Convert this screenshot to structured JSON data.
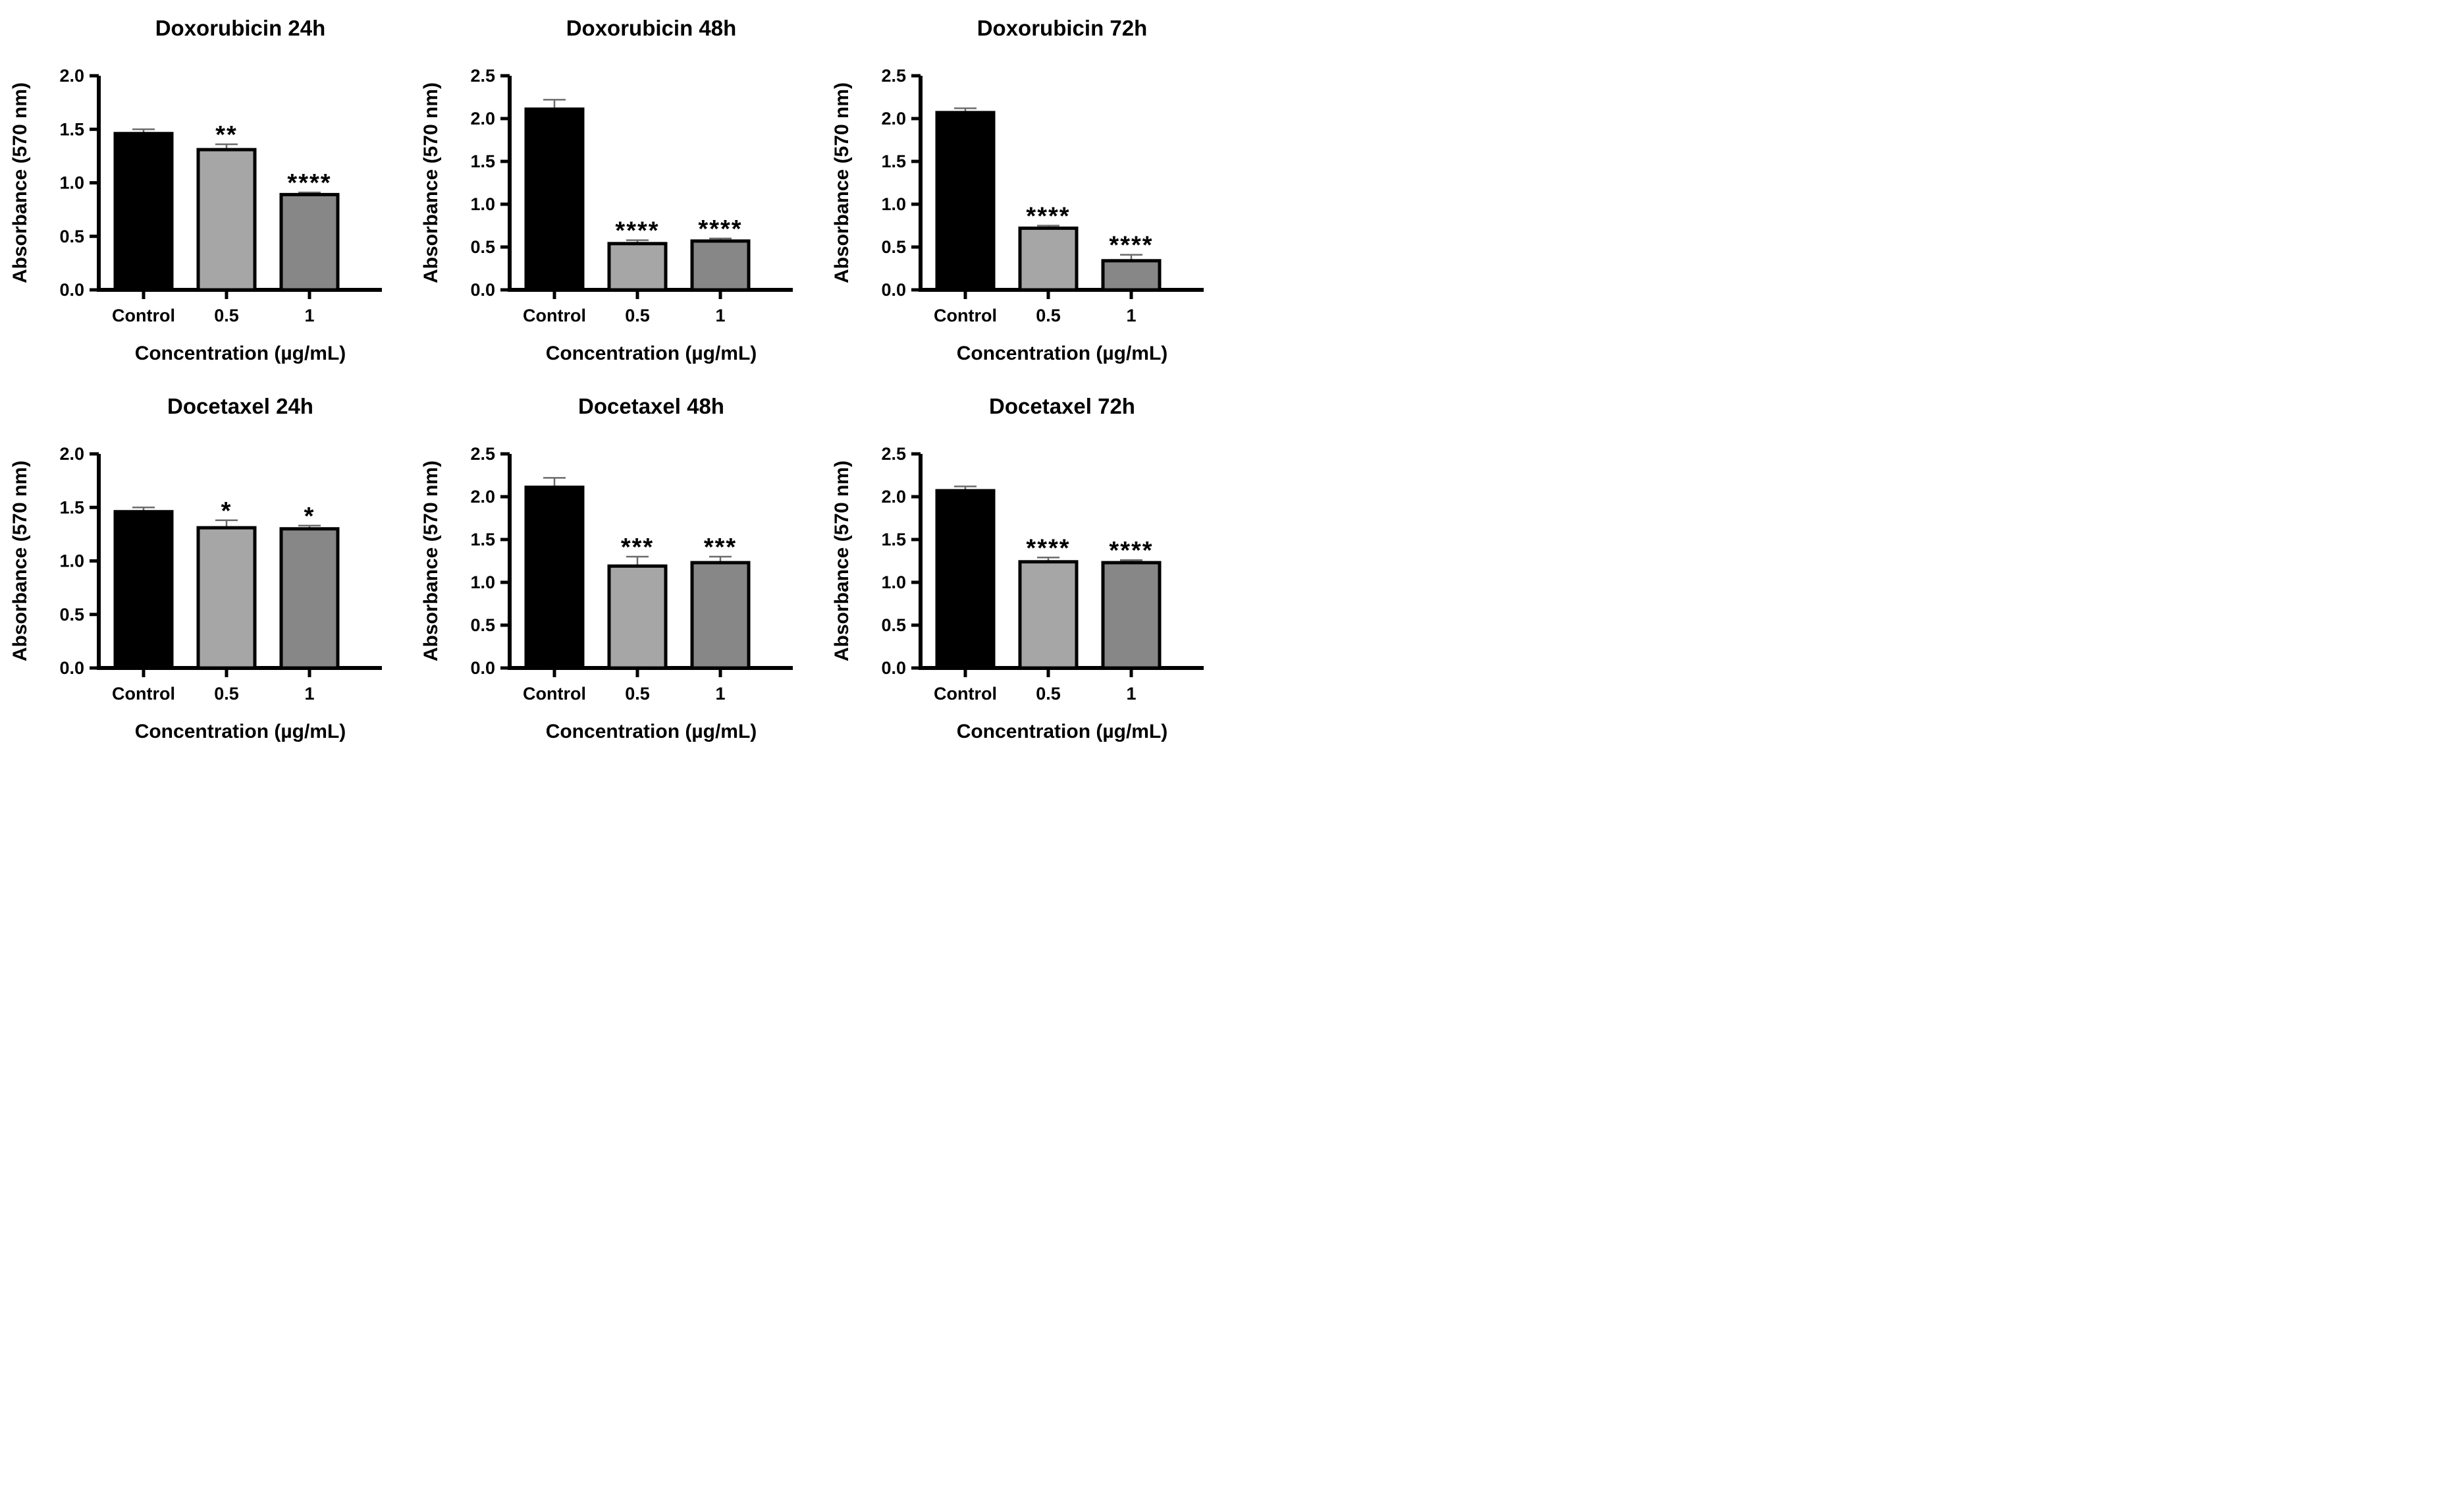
{
  "figure": {
    "background": "#ffffff",
    "grid": false,
    "legend": false,
    "colors": {
      "axis": "#000000",
      "text": "#000000",
      "error_bar": "#6b6b6b",
      "bar_fill_control": "#000000",
      "bar_fill_dose_0_5": "#a6a6a6",
      "bar_fill_dose_1": "#878787"
    }
  },
  "chart_data": [
    {
      "type": "bar",
      "title": "Doxorubicin 24h",
      "xlabel": "Concentration (µg/mL)",
      "ylabel": "Absorbance (570 nm)",
      "ylim": [
        0,
        2.0
      ],
      "yticks": [
        "0.0",
        "0.5",
        "1.0",
        "1.5",
        "2.0"
      ],
      "categories": [
        "Control",
        "0.5",
        "1"
      ],
      "values": [
        1.46,
        1.31,
        0.89
      ],
      "errors": [
        0.04,
        0.05,
        0.02
      ],
      "significance": [
        "",
        "**",
        "****"
      ],
      "bar_colors": [
        "#000000",
        "#a6a6a6",
        "#878787"
      ]
    },
    {
      "type": "bar",
      "title": "Doxorubicin 48h",
      "xlabel": "Concentration (µg/mL)",
      "ylabel": "Absorbance (570 nm)",
      "ylim": [
        0,
        2.5
      ],
      "yticks": [
        "0.0",
        "0.5",
        "1.0",
        "1.5",
        "2.0",
        "2.5"
      ],
      "categories": [
        "Control",
        "0.5",
        "1"
      ],
      "values": [
        2.11,
        0.54,
        0.57
      ],
      "errors": [
        0.11,
        0.04,
        0.03
      ],
      "significance": [
        "",
        "****",
        "****"
      ],
      "bar_colors": [
        "#000000",
        "#a6a6a6",
        "#878787"
      ]
    },
    {
      "type": "bar",
      "title": "Doxorubicin 72h",
      "xlabel": "Concentration (µg/mL)",
      "ylabel": "Absorbance (570 nm)",
      "ylim": [
        0,
        2.5
      ],
      "yticks": [
        "0.0",
        "0.5",
        "1.0",
        "1.5",
        "2.0",
        "2.5"
      ],
      "categories": [
        "Control",
        "0.5",
        "1"
      ],
      "values": [
        2.07,
        0.72,
        0.34
      ],
      "errors": [
        0.05,
        0.03,
        0.07
      ],
      "significance": [
        "",
        "****",
        "****"
      ],
      "bar_colors": [
        "#000000",
        "#a6a6a6",
        "#878787"
      ]
    },
    {
      "type": "bar",
      "title": "Docetaxel 24h",
      "xlabel": "Concentration (µg/mL)",
      "ylabel": "Absorbance (570 nm)",
      "ylim": [
        0,
        2.0
      ],
      "yticks": [
        "0.0",
        "0.5",
        "1.0",
        "1.5",
        "2.0"
      ],
      "categories": [
        "Control",
        "0.5",
        "1"
      ],
      "values": [
        1.46,
        1.31,
        1.3
      ],
      "errors": [
        0.04,
        0.07,
        0.03
      ],
      "significance": [
        "",
        "*",
        "*"
      ],
      "bar_colors": [
        "#000000",
        "#a6a6a6",
        "#878787"
      ]
    },
    {
      "type": "bar",
      "title": "Docetaxel 48h",
      "xlabel": "Concentration (µg/mL)",
      "ylabel": "Absorbance (570 nm)",
      "ylim": [
        0,
        2.5
      ],
      "yticks": [
        "0.0",
        "0.5",
        "1.0",
        "1.5",
        "2.0",
        "2.5"
      ],
      "categories": [
        "Control",
        "0.5",
        "1"
      ],
      "values": [
        2.11,
        1.19,
        1.23
      ],
      "errors": [
        0.11,
        0.11,
        0.07
      ],
      "significance": [
        "",
        "***",
        "***"
      ],
      "bar_colors": [
        "#000000",
        "#a6a6a6",
        "#878787"
      ]
    },
    {
      "type": "bar",
      "title": "Docetaxel 72h",
      "xlabel": "Concentration (µg/mL)",
      "ylabel": "Absorbance (570 nm)",
      "ylim": [
        0,
        2.5
      ],
      "yticks": [
        "0.0",
        "0.5",
        "1.0",
        "1.5",
        "2.0",
        "2.5"
      ],
      "categories": [
        "Control",
        "0.5",
        "1"
      ],
      "values": [
        2.07,
        1.24,
        1.23
      ],
      "errors": [
        0.05,
        0.05,
        0.03
      ],
      "significance": [
        "",
        "****",
        "****"
      ],
      "bar_colors": [
        "#000000",
        "#a6a6a6",
        "#878787"
      ]
    }
  ]
}
